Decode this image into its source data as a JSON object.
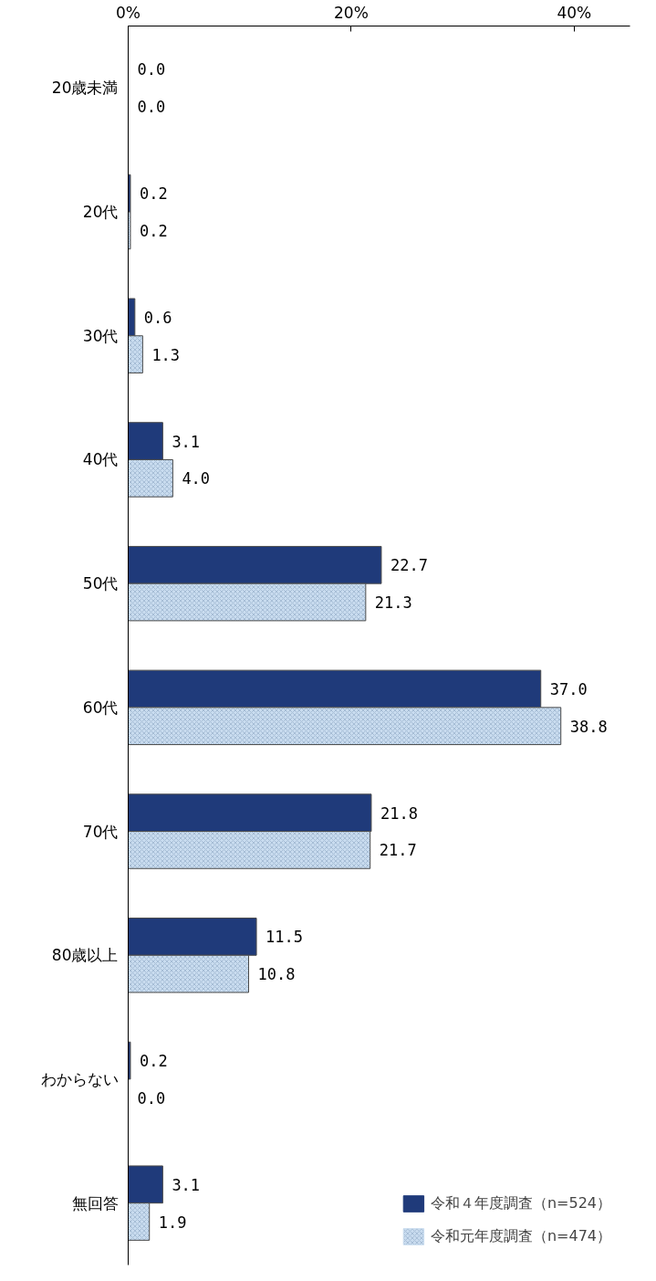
{
  "chart_data": {
    "type": "bar",
    "orientation": "horizontal",
    "categories": [
      "20歳未満",
      "20代",
      "30代",
      "40代",
      "50代",
      "60代",
      "70代",
      "80歳以上",
      "わからない",
      "無回答"
    ],
    "series": [
      {
        "name": "令和４年度調査（n=524）",
        "color": "#1f3a7a",
        "values": [
          0.0,
          0.2,
          0.6,
          3.1,
          22.7,
          37.0,
          21.8,
          11.5,
          0.2,
          3.1
        ],
        "value_labels": [
          "0.0",
          "0.2",
          "0.6",
          "3.1",
          "22.7",
          "37.0",
          "21.8",
          "11.5",
          "0.2",
          "3.1"
        ]
      },
      {
        "name": "令和元年度調査（n=474）",
        "color": "#c9dcef",
        "values": [
          0.0,
          0.2,
          1.3,
          4.0,
          21.3,
          38.8,
          21.7,
          10.8,
          0.0,
          1.9
        ],
        "value_labels": [
          "0.0",
          "0.2",
          "1.3",
          "4.0",
          "21.3",
          "38.8",
          "21.7",
          "10.8",
          "0.0",
          "1.9"
        ]
      }
    ],
    "xlim": [
      0,
      45
    ],
    "xticks": [
      {
        "value": 0,
        "label": "0%"
      },
      {
        "value": 20,
        "label": "20%"
      },
      {
        "value": 40,
        "label": "40%"
      }
    ],
    "grid": false,
    "legend": "bottom right"
  }
}
